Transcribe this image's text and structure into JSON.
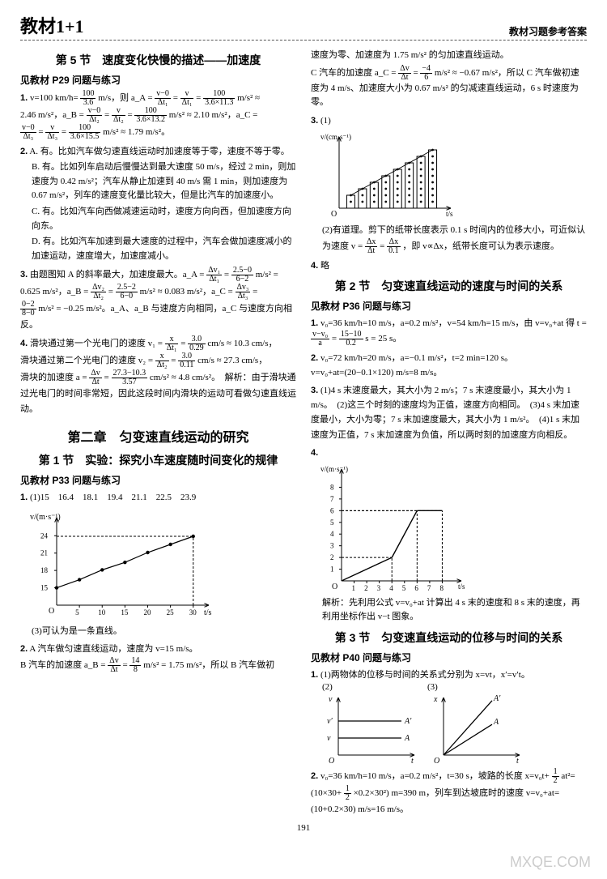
{
  "header": {
    "logo": "教材1+1",
    "right": "教材习题参考答案"
  },
  "left": {
    "sec5_title": "第 5 节　速度变化快慢的描述——加速度",
    "sec5_ref": "见教材 P29 问题与练习",
    "q1_line1": "v=100 km/h=",
    "q1_eq1_num": "100",
    "q1_eq1_den": "3.6",
    "q1_line1b": " m/s，则 a_A =",
    "q1_eqA_num": "v−0",
    "q1_eqA_den": "Δt₁",
    "q1_eq_mid": " = ",
    "q1_eqA2_num": "v",
    "q1_eqA2_den": "Δt₁",
    "q1_eqA3_num": "100",
    "q1_eqA3_den": "3.6×11.3",
    "q1_unit": " m/s² ≈",
    "q1_line2": "2.46 m/s²，a_B =",
    "q1_B_num": "v−0",
    "q1_B_den": "Δt₂",
    "q1_B2_num": "v",
    "q1_B2_den": "Δt₂",
    "q1_B3_num": "100",
    "q1_B3_den": "3.6×13.2",
    "q1_line2b": " m/s² ≈ 2.10 m/s²，a_C =",
    "q1_C_num": "v−0",
    "q1_C_den": "Δt₃",
    "q1_C2_num": "v",
    "q1_C2_den": "Δt₃",
    "q1_C3_num": "100",
    "q1_C3_den": "3.6×15.5",
    "q1_line3": " m/s² ≈ 1.79 m/s²。",
    "q2_A": "A. 有。比如汽车做匀速直线运动时加速度等于零，速度不等于零。",
    "q2_B": "B. 有。比如列车启动后慢慢达到最大速度 50 m/s，经过 2 min，则加速度为 0.42 m/s²；汽车从静止加速到 40 m/s 需 1 min，则加速度为 0.67 m/s²，列车的速度变化量比较大，但是比汽车的加速度小。",
    "q2_C": "C. 有。比如汽车向西做减速运动时，速度方向向西，但加速度方向向东。",
    "q2_D": "D. 有。比如汽车加速到最大速度的过程中，汽车会做加速度减小的加速运动，速度增大，加速度减小。",
    "q3_a": "由题图知 A 的斜率最大，加速度最大。a_A =",
    "q3_A_num": "Δv₁",
    "q3_A_den": "Δt₁",
    "q3_A2_num": "2.5−0",
    "q3_A2_den": "6−2",
    "q3_a_tail": " m/s² =",
    "q3_b": "0.625 m/s²，a_B =",
    "q3_B_num": "Δv₂",
    "q3_B_den": "Δt₂",
    "q3_B2_num": "2.5−2",
    "q3_B2_den": "6−0",
    "q3_b_tail": " m/s² ≈ 0.083 m/s²，a_C =",
    "q3_C_num": "Δv₃",
    "q3_C_den": "Δt₃",
    "q3_c": " =",
    "q3_C2_num": "0−2",
    "q3_C2_den": "8−0",
    "q3_c_tail": " m/s² = −0.25 m/s²。a_A、a_B 与速度方向相同，a_C 与速度方向相反。",
    "q4_a": "滑块通过第一个光电门的速度 v₁ =",
    "q4_1_num": "x",
    "q4_1_den": "Δt₁",
    "q4_12_num": "3.0",
    "q4_12_den": "0.29",
    "q4_a_tail": " cm/s ≈ 10.3 cm/s，",
    "q4_b": "滑块通过第二个光电门的速度 v₂ =",
    "q4_2_num": "x",
    "q4_2_den": "Δt₂",
    "q4_22_num": "3.0",
    "q4_22_den": "0.11",
    "q4_b_tail": " cm/s ≈ 27.3 cm/s，",
    "q4_c": "滑块的加速度 a =",
    "q4_3_num": "Δv",
    "q4_3_den": "Δt",
    "q4_32_num": "27.3−10.3",
    "q4_32_den": "3.57",
    "q4_c_tail": " cm/s² ≈ 4.8 cm/s²。　解析：由于滑块通过光电门的时间非常短，因此这段时间内滑块的运动可看做匀速直线运动。",
    "chapter2": "第二章　匀变速直线运动的研究",
    "sec1_title": "第 1 节　实验：探究小车速度随时间变化的规律",
    "sec1_ref": "见教材 P33 问题与练习",
    "sec1_q1": "(1)15　16.4　18.1　19.4　21.1　22.5　23.9",
    "chart1": {
      "type": "line",
      "ylabel": "v/(m·s⁻¹)",
      "xlabel": "t/s",
      "x_ticks": [
        5,
        10,
        15,
        20,
        25,
        30
      ],
      "y_ticks": [
        15,
        18,
        21,
        24
      ],
      "xlim": [
        0,
        32
      ],
      "ylim": [
        12,
        26
      ],
      "points": [
        [
          0,
          15
        ],
        [
          5,
          16.4
        ],
        [
          10,
          18.1
        ],
        [
          15,
          19.4
        ],
        [
          20,
          21.1
        ],
        [
          25,
          22.5
        ],
        [
          30,
          23.9
        ]
      ],
      "line_color": "#000000",
      "marker": "dot",
      "dash_x": 30,
      "dash_y": 23.9,
      "bg": "#ffffff"
    },
    "sec1_q1_3": "(3)可认为是一条直线。",
    "sec1_q2_a": "A 汽车做匀速直线运动，速度为 v=15 m/s。",
    "sec1_q2_b": "B 汽车的加速度 a_B =",
    "sec1_q2_num": "Δv",
    "sec1_q2_den": "Δt",
    "sec1_q2_num2": "14",
    "sec1_q2_den2": "8",
    "sec1_q2_tail": " m/s² = 1.75 m/s²，所以 B 汽车做初"
  },
  "right": {
    "cont1": "速度为零、加速度为 1.75 m/s² 的匀加速直线运动。",
    "cont2a": "C 汽车的加速度 a_C =",
    "cont2_num": "Δv",
    "cont2_den": "Δt",
    "cont2_num2": "−4",
    "cont2_den2": "6",
    "cont2b": " m/s² ≈ −0.67 m/s²，所以 C 汽车做初速度为 4 m/s、加速度大小为 0.67 m/s² 的匀减速直线运动，6 s 时速度为零。",
    "q3_label": "(1)",
    "chart2": {
      "type": "dot-strip",
      "ylabel": "v/(cm·s⁻¹)",
      "xlabel": "t/s",
      "xlim": [
        0,
        9
      ],
      "ylim": [
        0,
        10
      ],
      "strips": [
        {
          "x": 1,
          "h": 2
        },
        {
          "x": 2,
          "h": 3
        },
        {
          "x": 3,
          "h": 4
        },
        {
          "x": 4,
          "h": 5
        },
        {
          "x": 5,
          "h": 6
        },
        {
          "x": 6,
          "h": 7
        },
        {
          "x": 7,
          "h": 8
        },
        {
          "x": 8,
          "h": 9
        }
      ],
      "line_color": "#000",
      "fill": "#fff"
    },
    "q3_2a": "(2)有道理。剪下的纸带长度表示 0.1 s 时间内的位移大小，可近似认为速度 v =",
    "q3_2_num": "Δx",
    "q3_2_den": "Δt",
    "q3_2_num2": "Δx",
    "q3_2_den2": "0.1",
    "q3_2b": "，即 v∝Δx，纸带长度可认为表示速度。",
    "q4": "略",
    "sec2_title": "第 2 节　匀变速直线运动的速度与时间的关系",
    "sec2_ref": "见教材 P36 问题与练习",
    "s2_q1a": "v₀=36 km/h=10 m/s，a=0.2 m/s²，v=54 km/h=15 m/s，由 v=v₀+at 得 t =",
    "s2_q1_num": "v−v₀",
    "s2_q1_den": "a",
    "s2_q1_num2": "15−10",
    "s2_q1_den2": "0.2",
    "s2_q1b": " s = 25 s。",
    "s2_q2": "v₀=72 km/h=20 m/s，a=−0.1 m/s²，t=2 min=120 s。\nv=v₀+at=(20−0.1×120) m/s=8 m/s。",
    "s2_q3": "(1)4 s 末速度最大，其大小为 2 m/s；7 s 末速度最小，其大小为 1 m/s。　(2)这三个时刻的速度均为正值，速度方向相同。　(3)4 s 末加速度最小，大小为零；7 s 末加速度最大，其大小为 1 m/s²。　(4)1 s 末加速度为正值，7 s 末加速度为负值，所以两时刻的加速度方向相反。",
    "chart3": {
      "type": "line",
      "ylabel": "v/(m·s⁻¹)",
      "xlabel": "t/s",
      "x_ticks": [
        1,
        2,
        3,
        4,
        5,
        6,
        7,
        8
      ],
      "y_ticks": [
        1,
        2,
        3,
        4,
        5,
        6,
        7,
        8
      ],
      "xlim": [
        0,
        9
      ],
      "ylim": [
        0,
        9
      ],
      "segments": [
        [
          [
            0,
            0
          ],
          [
            4,
            2
          ]
        ],
        [
          [
            4,
            2
          ],
          [
            6,
            6
          ]
        ],
        [
          [
            6,
            6
          ],
          [
            8,
            6
          ]
        ]
      ],
      "dash_points": [
        [
          4,
          2
        ],
        [
          6,
          6
        ],
        [
          8,
          6
        ]
      ],
      "line_color": "#000"
    },
    "chart3_note": "解析：先利用公式 v=v₀+at 计算出 4 s 末的速度和 8 s 末的速度，再利用坐标作出 v−t 图象。",
    "sec3_title": "第 3 节　匀变速直线运动的位移与时间的关系",
    "sec3_ref": "见教材 P40 问题与练习",
    "s3_q1_1": "(1)两物体的位移与时间的关系式分别为 x=vt，x′=v′t。",
    "s3_q1_2_label": "(2)",
    "s3_q1_3_label": "(3)",
    "chart4": {
      "type": "two-lines",
      "ylabel": "v",
      "xlabel": "t",
      "lines": [
        {
          "y": 3,
          "label": "A′"
        },
        {
          "y": 1.5,
          "label": "A"
        }
      ]
    },
    "chart5": {
      "type": "rays",
      "ylabel": "x",
      "xlabel": "t",
      "rays": [
        {
          "slope": 1.6,
          "label": "A′"
        },
        {
          "slope": 0.9,
          "label": "A"
        }
      ]
    },
    "s3_q2a": "v₀=36 km/h=10 m/s，a=0.2 m/s²，t=30 s，坡路的长度 x=v₀t+",
    "s3_q2_num": "1",
    "s3_q2_den": "2",
    "s3_q2b": "at²=(10×30+",
    "s3_q2_num2": "1",
    "s3_q2_den2": "2",
    "s3_q2c": "×0.2×30²) m=390 m，列车到达坡底时的速度 v=v₀+at=(10+0.2×30) m/s=16 m/s。"
  },
  "footer": {
    "page": "191"
  },
  "watermark": "MXQE.COM"
}
